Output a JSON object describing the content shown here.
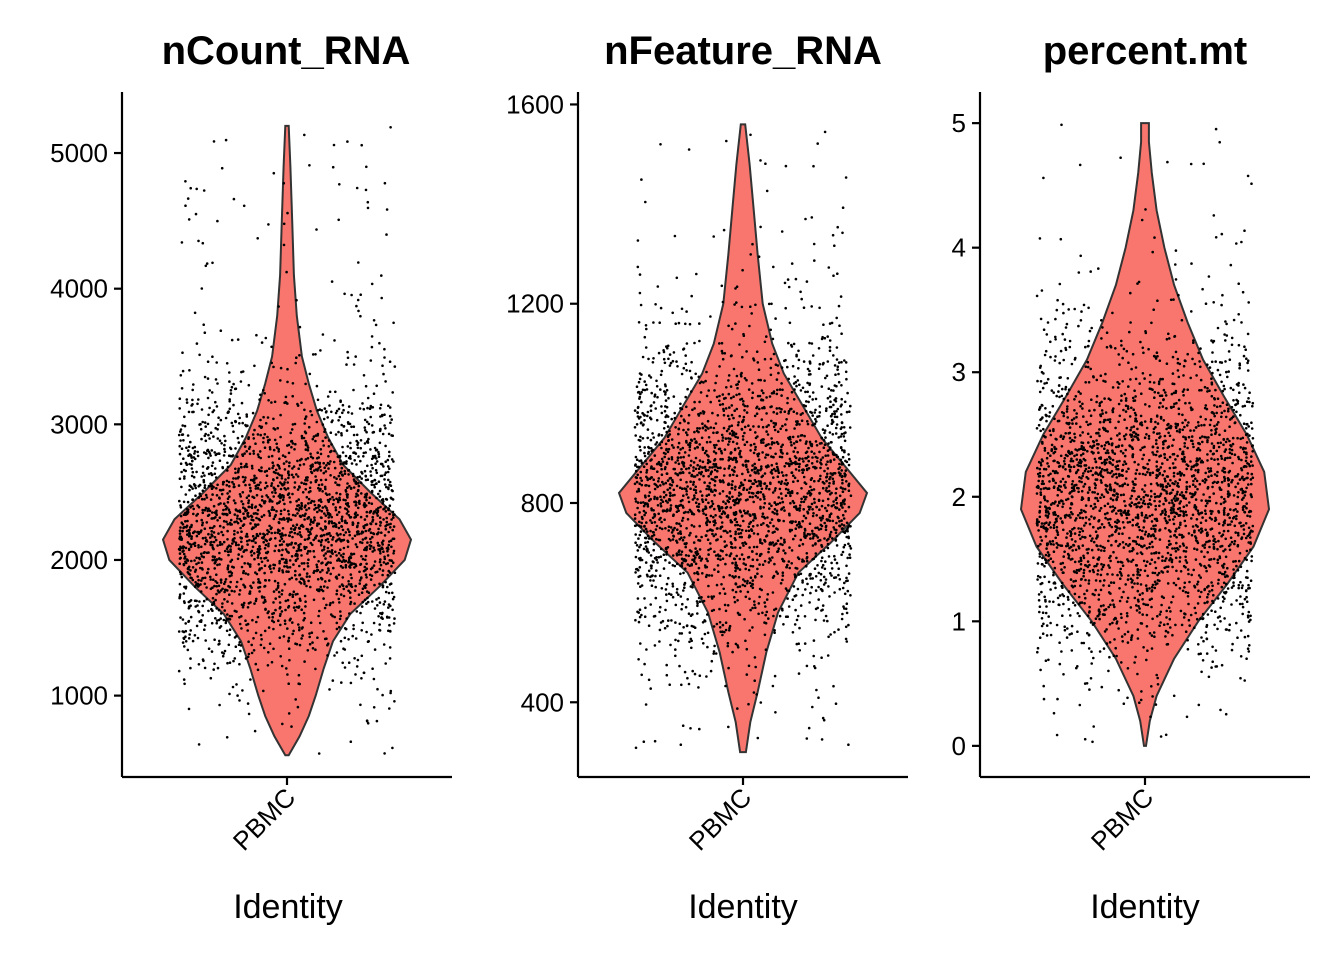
{
  "colors": {
    "violin_fill": "#F8766D",
    "violin_stroke": "#333333",
    "point": "#000000",
    "axis": "#000000"
  },
  "chart_data": [
    {
      "type": "violin",
      "title": "nCount_RNA",
      "xlabel": "Identity",
      "categories": [
        "PBMC"
      ],
      "yticks": [
        1000,
        2000,
        3000,
        4000,
        5000
      ],
      "ylim": [
        400,
        5450
      ],
      "data_range": [
        560,
        5200
      ],
      "density": [
        [
          560,
          0.03
        ],
        [
          700,
          0.22
        ],
        [
          850,
          0.38
        ],
        [
          1000,
          0.5
        ],
        [
          1200,
          0.64
        ],
        [
          1400,
          0.8
        ],
        [
          1600,
          1.1
        ],
        [
          1800,
          1.6
        ],
        [
          2000,
          2.05
        ],
        [
          2150,
          2.16
        ],
        [
          2300,
          1.96
        ],
        [
          2500,
          1.45
        ],
        [
          2700,
          0.98
        ],
        [
          2900,
          0.72
        ],
        [
          3100,
          0.52
        ],
        [
          3300,
          0.38
        ],
        [
          3500,
          0.26
        ],
        [
          3800,
          0.17
        ],
        [
          4100,
          0.12
        ],
        [
          4500,
          0.09
        ],
        [
          4900,
          0.06
        ],
        [
          5200,
          0.03
        ]
      ],
      "n_points": 2638,
      "point_sample": {
        "shape": 0.8,
        "center": 2250,
        "spread": 1200,
        "tail": 0.06
      }
    },
    {
      "type": "violin",
      "title": "nFeature_RNA",
      "xlabel": "Identity",
      "categories": [
        "PBMC"
      ],
      "yticks": [
        400,
        800,
        1200,
        1600
      ],
      "ylim": [
        250,
        1625
      ],
      "data_range": [
        300,
        1560
      ],
      "density": [
        [
          300,
          0.04
        ],
        [
          360,
          0.1
        ],
        [
          420,
          0.2
        ],
        [
          500,
          0.32
        ],
        [
          580,
          0.48
        ],
        [
          660,
          0.76
        ],
        [
          720,
          1.2
        ],
        [
          780,
          1.6
        ],
        [
          820,
          1.7
        ],
        [
          870,
          1.42
        ],
        [
          930,
          1.08
        ],
        [
          1000,
          0.8
        ],
        [
          1060,
          0.56
        ],
        [
          1120,
          0.4
        ],
        [
          1200,
          0.27
        ],
        [
          1300,
          0.2
        ],
        [
          1400,
          0.14
        ],
        [
          1480,
          0.09
        ],
        [
          1560,
          0.03
        ]
      ],
      "n_points": 2638,
      "point_sample": {
        "shape": 0.8,
        "center": 820,
        "spread": 360,
        "tail": 0.05
      }
    },
    {
      "type": "violin",
      "title": "percent.mt",
      "xlabel": "Identity",
      "categories": [
        "PBMC"
      ],
      "yticks": [
        0,
        1,
        2,
        3,
        4,
        5
      ],
      "ylim": [
        -0.25,
        5.25
      ],
      "data_range": [
        0,
        5
      ],
      "density": [
        [
          0.0,
          0.01
        ],
        [
          0.2,
          0.05
        ],
        [
          0.4,
          0.12
        ],
        [
          0.7,
          0.3
        ],
        [
          1.0,
          0.55
        ],
        [
          1.3,
          0.85
        ],
        [
          1.6,
          1.12
        ],
        [
          1.9,
          1.28
        ],
        [
          2.2,
          1.23
        ],
        [
          2.5,
          1.05
        ],
        [
          2.8,
          0.82
        ],
        [
          3.1,
          0.6
        ],
        [
          3.4,
          0.44
        ],
        [
          3.7,
          0.3
        ],
        [
          4.0,
          0.2
        ],
        [
          4.3,
          0.12
        ],
        [
          4.6,
          0.07
        ],
        [
          4.85,
          0.04
        ],
        [
          5.0,
          0.04
        ]
      ],
      "n_points": 2638,
      "point_sample": {
        "shape": 0.85,
        "center": 2.0,
        "spread": 1.5,
        "tail": 0.03
      }
    }
  ]
}
